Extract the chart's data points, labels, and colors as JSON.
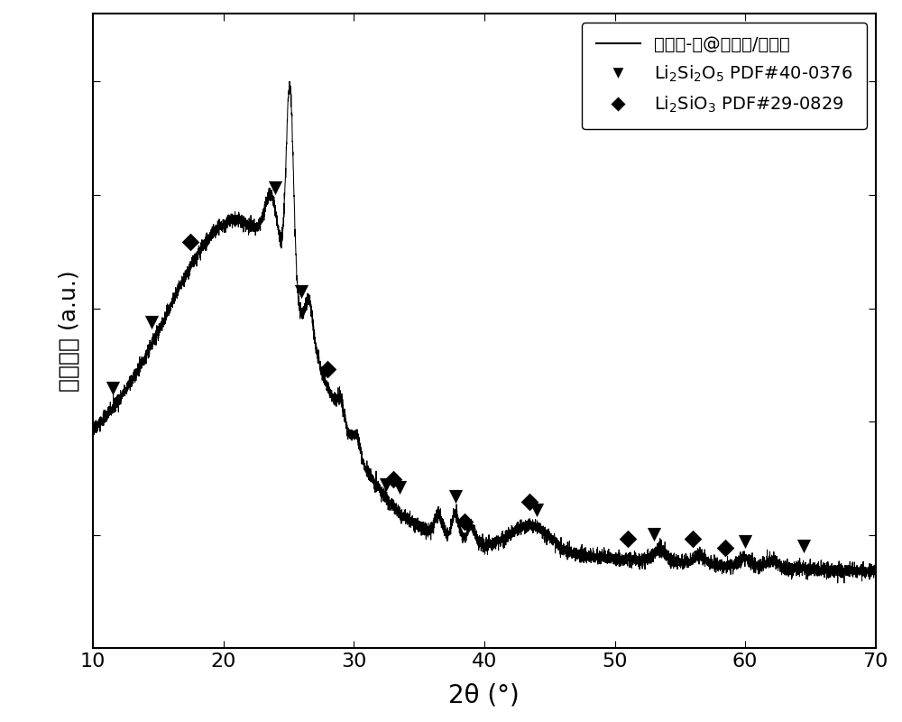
{
  "xmin": 10,
  "xmax": 70,
  "xticks": [
    10,
    20,
    30,
    40,
    50,
    60,
    70
  ],
  "xlabel": "2θ (°)",
  "ylabel": "相对强度 (a.u.)",
  "legend_line_label": "氧化硅-碳@硅酸锂/石墨烯",
  "background_color": "#ffffff",
  "line_color": "#000000",
  "triangle_x": [
    11.5,
    14.5,
    24.0,
    26.0,
    32.5,
    33.5,
    37.8,
    44.0,
    53.0,
    60.0,
    64.5
  ],
  "diamond_x": [
    17.5,
    28.0,
    33.0,
    38.5,
    43.5,
    51.0,
    56.0,
    58.5
  ],
  "seed": 42
}
